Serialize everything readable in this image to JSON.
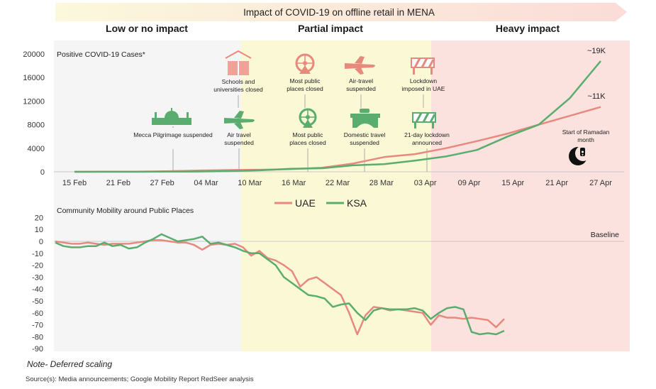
{
  "chart_data": {
    "title": "Impact of COVID-19 on offline retail in MENA",
    "phases": [
      "Low or no impact",
      "Partial impact",
      "Heavy impact"
    ],
    "type": "line",
    "cases": {
      "title": "Positive COVID-19 Cases*",
      "x_ticks": [
        "15 Feb",
        "21 Feb",
        "27 Feb",
        "04 Mar",
        "10 Mar",
        "16 Mar",
        "22 Mar",
        "28 Mar",
        "03 Apr",
        "09 Apr",
        "15 Apr",
        "21 Apr",
        "27 Apr"
      ],
      "y_ticks": [
        "20000",
        "16000",
        "12000",
        "8000",
        "4000",
        "0"
      ],
      "ylim": [
        0,
        20000
      ],
      "series": [
        {
          "name": "UAE",
          "color": "#e8897d",
          "values": [
            0,
            20,
            40,
            100,
            200,
            300,
            350,
            450,
            700,
            1400,
            2500,
            3000,
            4000,
            5200,
            6500,
            8000,
            9500,
            11000
          ]
        },
        {
          "name": "KSA",
          "color": "#5aad6e",
          "values": [
            0,
            0,
            0,
            20,
            50,
            120,
            250,
            500,
            600,
            1100,
            1300,
            1900,
            2600,
            3700,
            6000,
            8000,
            12500,
            18800
          ]
        }
      ],
      "end_labels": [
        "~19K",
        "~11K"
      ],
      "ramadan_label": "Start of Ramadan month"
    },
    "events": [
      {
        "label": "Mecca Pilgrimage suspended",
        "icon": "mosque-icon"
      },
      {
        "label": "Schools and universities closed",
        "icon": "school-icon"
      },
      {
        "label": "Air travel suspended",
        "icon": "airplane-icon"
      },
      {
        "label": "Most public places closed",
        "icon": "ferris-wheel-icon"
      },
      {
        "label": "Most public places closed",
        "icon": "ferris-wheel-icon"
      },
      {
        "label": "Air-travel suspended",
        "icon": "airplane-icon"
      },
      {
        "label": "Domestic travel suspended",
        "icon": "bridge-car-icon"
      },
      {
        "label": "Lockdown imposed in UAE",
        "icon": "barrier-icon"
      },
      {
        "label": "21-day lockdown announced",
        "icon": "barrier-icon"
      }
    ],
    "mobility": {
      "title": "Community Mobility around Public Places",
      "y_ticks": [
        "20",
        "10",
        "0",
        "-10",
        "-20",
        "-30",
        "-40",
        "-50",
        "-60",
        "-70",
        "-80",
        "-90"
      ],
      "ylim": [
        -90,
        20
      ],
      "baseline_label": "Baseline",
      "series": [
        {
          "name": "UAE",
          "color": "#e8897d",
          "values": [
            0,
            -1,
            -2,
            -2,
            -1,
            -2,
            -3,
            -2,
            -2,
            -2,
            -1,
            0,
            1,
            1,
            0,
            -1,
            -1,
            -3,
            -7,
            -3,
            -2,
            -3,
            -2,
            -5,
            -12,
            -8,
            -14,
            -16,
            -20,
            -25,
            -38,
            -32,
            -30,
            -35,
            -40,
            -45,
            -60,
            -78,
            -62,
            -55,
            -56,
            -58,
            -57,
            -58,
            -59,
            -60,
            -70,
            -62,
            -64,
            -64,
            -65,
            -64,
            -65,
            -66,
            -72,
            -65
          ]
        },
        {
          "name": "KSA",
          "color": "#5aad6e",
          "values": [
            -1,
            -4,
            -5,
            -5,
            -4,
            -4,
            -1,
            -4,
            -3,
            -6,
            -5,
            -1,
            2,
            6,
            3,
            0,
            1,
            2,
            4,
            -2,
            -1,
            -3,
            -5,
            -8,
            -10,
            -10,
            -15,
            -20,
            -30,
            -35,
            -40,
            -45,
            -46,
            -48,
            -55,
            -53,
            -52,
            -60,
            -66,
            -58,
            -56,
            -57,
            -57,
            -57,
            -56,
            -58,
            -65,
            -60,
            -56,
            -55,
            -57,
            -76,
            -78,
            -77,
            -78,
            -75
          ]
        }
      ]
    },
    "legend": [
      "UAE",
      "KSA"
    ],
    "colors": {
      "low": "#f4f4f4",
      "partial": "#fbf8d6",
      "heavy": "#fbe4e2",
      "uae": "#e8897d",
      "ksa": "#5aad6e"
    }
  },
  "footer": {
    "note": "Note- Deferred scaling",
    "source": "Source(s): Media announcements; Google Mobility Report RedSeer analysis"
  }
}
